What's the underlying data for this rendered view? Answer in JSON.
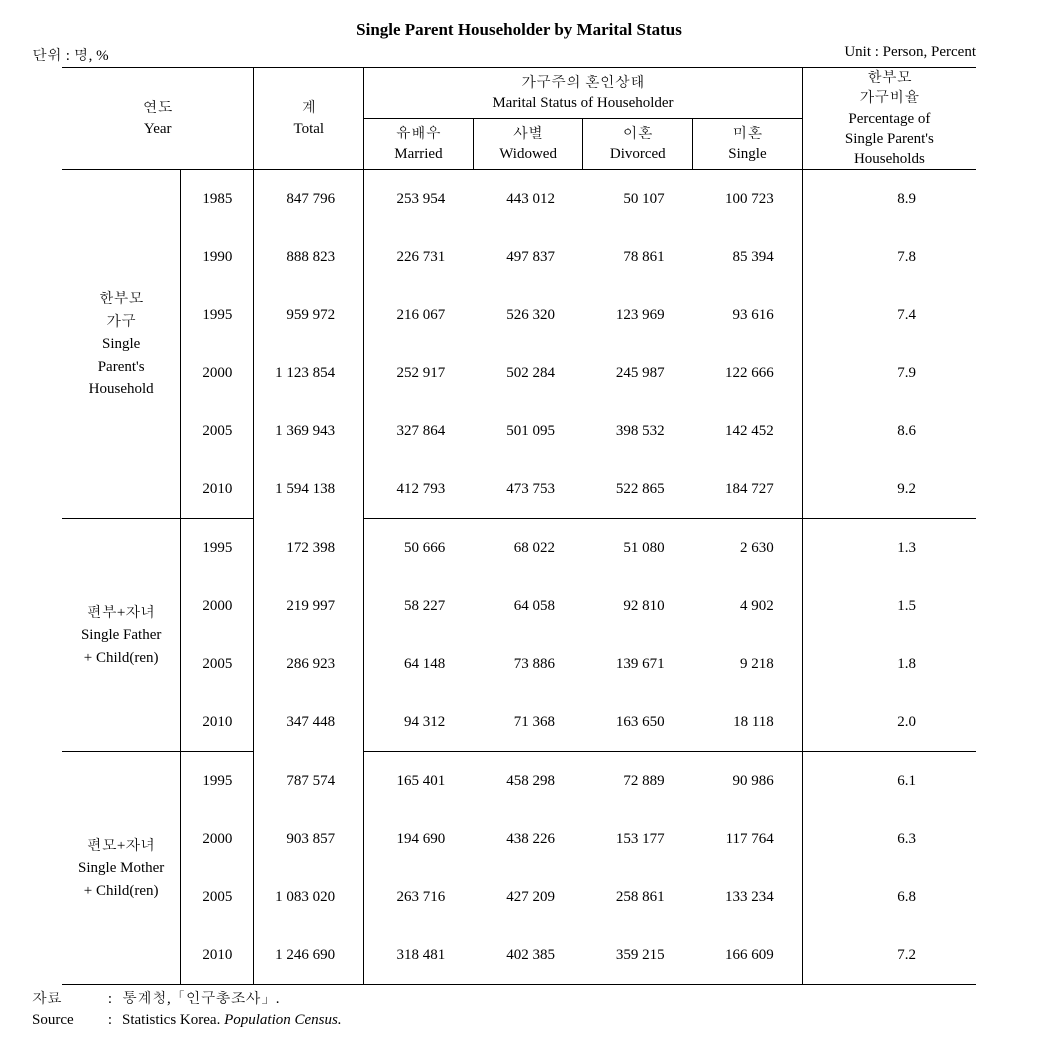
{
  "title": "Single Parent Householder by Marital Status",
  "unit_left": "단위 : 명, %",
  "unit_right": "Unit : Person, Percent",
  "headers": {
    "year_ko": "연도",
    "year_en": "Year",
    "total_ko": "계",
    "total_en": "Total",
    "marital_group_ko": "가구주의 혼인상태",
    "marital_group_en": "Marital Status of Householder",
    "married_ko": "유배우",
    "married_en": "Married",
    "widowed_ko": "사별",
    "widowed_en": "Widowed",
    "divorced_ko": "이혼",
    "divorced_en": "Divorced",
    "single_ko": "미혼",
    "single_en": "Single",
    "pct_ko": "한부모",
    "pct_ko2": "가구비율",
    "pct_en1": "Percentage of",
    "pct_en2": "Single Parent's",
    "pct_en3": "Households"
  },
  "groups": [
    {
      "label_lines": [
        "한부모",
        "가구",
        "Single",
        "Parent's",
        "Household"
      ],
      "rows": [
        {
          "year": "1985",
          "total": "847 796",
          "married": "253 954",
          "widowed": "443 012",
          "divorced": "50 107",
          "single": "100 723",
          "pct": "8.9"
        },
        {
          "year": "1990",
          "total": "888 823",
          "married": "226 731",
          "widowed": "497 837",
          "divorced": "78 861",
          "single": "85 394",
          "pct": "7.8"
        },
        {
          "year": "1995",
          "total": "959 972",
          "married": "216 067",
          "widowed": "526 320",
          "divorced": "123 969",
          "single": "93 616",
          "pct": "7.4"
        },
        {
          "year": "2000",
          "total": "1 123 854",
          "married": "252 917",
          "widowed": "502 284",
          "divorced": "245 987",
          "single": "122 666",
          "pct": "7.9"
        },
        {
          "year": "2005",
          "total": "1 369 943",
          "married": "327 864",
          "widowed": "501 095",
          "divorced": "398 532",
          "single": "142 452",
          "pct": "8.6"
        },
        {
          "year": "2010",
          "total": "1 594 138",
          "married": "412 793",
          "widowed": "473 753",
          "divorced": "522 865",
          "single": "184 727",
          "pct": "9.2"
        }
      ]
    },
    {
      "label_lines": [
        "편부+자녀",
        "Single Father",
        "+ Child(ren)"
      ],
      "rows": [
        {
          "year": "1995",
          "total": "172 398",
          "married": "50 666",
          "widowed": "68 022",
          "divorced": "51 080",
          "single": "2 630",
          "pct": "1.3"
        },
        {
          "year": "2000",
          "total": "219 997",
          "married": "58 227",
          "widowed": "64 058",
          "divorced": "92 810",
          "single": "4 902",
          "pct": "1.5"
        },
        {
          "year": "2005",
          "total": "286 923",
          "married": "64 148",
          "widowed": "73 886",
          "divorced": "139 671",
          "single": "9 218",
          "pct": "1.8"
        },
        {
          "year": "2010",
          "total": "347 448",
          "married": "94 312",
          "widowed": "71 368",
          "divorced": "163 650",
          "single": "18 118",
          "pct": "2.0"
        }
      ]
    },
    {
      "label_lines": [
        "편모+자녀",
        "Single Mother",
        "+ Child(ren)"
      ],
      "rows": [
        {
          "year": "1995",
          "total": "787 574",
          "married": "165 401",
          "widowed": "458 298",
          "divorced": "72 889",
          "single": "90 986",
          "pct": "6.1"
        },
        {
          "year": "2000",
          "total": "903 857",
          "married": "194 690",
          "widowed": "438 226",
          "divorced": "153 177",
          "single": "117 764",
          "pct": "6.3"
        },
        {
          "year": "2005",
          "total": "1 083 020",
          "married": "263 716",
          "widowed": "427 209",
          "divorced": "258 861",
          "single": "133 234",
          "pct": "6.8"
        },
        {
          "year": "2010",
          "total": "1 246 690",
          "married": "318 481",
          "widowed": "402 385",
          "divorced": "359 215",
          "single": "166 609",
          "pct": "7.2"
        }
      ]
    }
  ],
  "footer": {
    "src_ko_label": "자료",
    "src_ko_value": "통계청,「인구총조사」.",
    "src_en_label": "Source",
    "src_en_value_a": "Statistics Korea. ",
    "src_en_value_b": "Population Census."
  },
  "col_widths": {
    "group": "13%",
    "year": "8%",
    "total": "12%",
    "married": "12%",
    "widowed": "12%",
    "divorced": "12%",
    "single": "12%",
    "pct": "19%"
  }
}
